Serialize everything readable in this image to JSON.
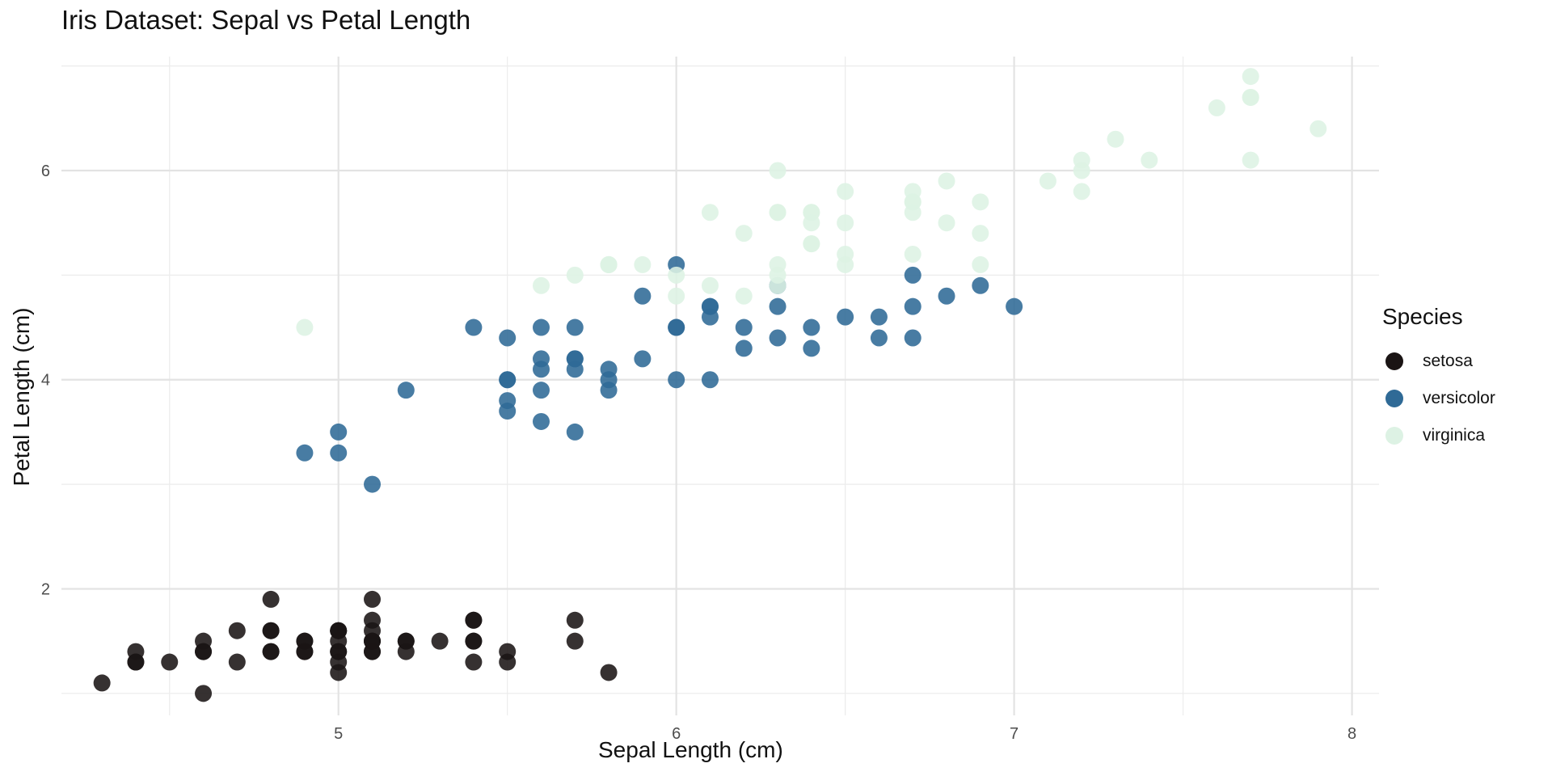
{
  "chart_data": {
    "type": "scatter",
    "title": "Iris Dataset: Sepal vs Petal Length",
    "xlabel": "Sepal Length (cm)",
    "ylabel": "Petal Length (cm)",
    "xlim": [
      4.18,
      8.08
    ],
    "ylim": [
      0.79,
      7.09
    ],
    "x_ticks": [
      5,
      6,
      7,
      8
    ],
    "x_tick_labels": [
      "5",
      "6",
      "7",
      "8"
    ],
    "y_ticks": [
      2,
      4,
      6
    ],
    "y_tick_labels": [
      "2",
      "4",
      "6"
    ],
    "grid": true,
    "legend_title": "Species",
    "legend_position": "right",
    "series": [
      {
        "name": "setosa",
        "color": "#1a1414",
        "points": [
          [
            5.1,
            1.4
          ],
          [
            4.9,
            1.4
          ],
          [
            4.7,
            1.3
          ],
          [
            4.6,
            1.5
          ],
          [
            5.0,
            1.4
          ],
          [
            5.4,
            1.7
          ],
          [
            4.6,
            1.4
          ],
          [
            5.0,
            1.5
          ],
          [
            4.4,
            1.4
          ],
          [
            4.9,
            1.5
          ],
          [
            5.4,
            1.5
          ],
          [
            4.8,
            1.6
          ],
          [
            4.8,
            1.4
          ],
          [
            4.3,
            1.1
          ],
          [
            5.8,
            1.2
          ],
          [
            5.7,
            1.5
          ],
          [
            5.4,
            1.3
          ],
          [
            5.1,
            1.4
          ],
          [
            5.7,
            1.7
          ],
          [
            5.1,
            1.5
          ],
          [
            5.4,
            1.7
          ],
          [
            5.1,
            1.5
          ],
          [
            4.6,
            1.0
          ],
          [
            5.1,
            1.7
          ],
          [
            4.8,
            1.9
          ],
          [
            5.0,
            1.6
          ],
          [
            5.0,
            1.6
          ],
          [
            5.2,
            1.5
          ],
          [
            5.2,
            1.4
          ],
          [
            4.7,
            1.6
          ],
          [
            4.8,
            1.6
          ],
          [
            5.4,
            1.5
          ],
          [
            5.2,
            1.5
          ],
          [
            5.5,
            1.4
          ],
          [
            4.9,
            1.5
          ],
          [
            5.0,
            1.2
          ],
          [
            5.5,
            1.3
          ],
          [
            4.9,
            1.4
          ],
          [
            4.4,
            1.3
          ],
          [
            5.1,
            1.5
          ],
          [
            5.0,
            1.3
          ],
          [
            4.5,
            1.3
          ],
          [
            4.4,
            1.3
          ],
          [
            5.0,
            1.6
          ],
          [
            5.1,
            1.9
          ],
          [
            4.8,
            1.4
          ],
          [
            5.1,
            1.6
          ],
          [
            4.6,
            1.4
          ],
          [
            5.3,
            1.5
          ],
          [
            5.0,
            1.4
          ]
        ]
      },
      {
        "name": "versicolor",
        "color": "#2f6a96",
        "points": [
          [
            7.0,
            4.7
          ],
          [
            6.4,
            4.5
          ],
          [
            6.9,
            4.9
          ],
          [
            5.5,
            4.0
          ],
          [
            6.5,
            4.6
          ],
          [
            5.7,
            4.5
          ],
          [
            6.3,
            4.7
          ],
          [
            4.9,
            3.3
          ],
          [
            6.6,
            4.6
          ],
          [
            5.2,
            3.9
          ],
          [
            5.0,
            3.5
          ],
          [
            5.9,
            4.2
          ],
          [
            6.0,
            4.0
          ],
          [
            6.1,
            4.7
          ],
          [
            5.6,
            3.6
          ],
          [
            6.7,
            4.4
          ],
          [
            5.6,
            4.5
          ],
          [
            5.8,
            4.1
          ],
          [
            6.2,
            4.5
          ],
          [
            5.6,
            3.9
          ],
          [
            5.9,
            4.8
          ],
          [
            6.1,
            4.0
          ],
          [
            6.3,
            4.9
          ],
          [
            6.1,
            4.7
          ],
          [
            6.4,
            4.3
          ],
          [
            6.6,
            4.4
          ],
          [
            6.8,
            4.8
          ],
          [
            6.7,
            5.0
          ],
          [
            6.0,
            4.5
          ],
          [
            5.7,
            3.5
          ],
          [
            5.5,
            3.8
          ],
          [
            5.5,
            3.7
          ],
          [
            5.8,
            3.9
          ],
          [
            6.0,
            5.1
          ],
          [
            5.4,
            4.5
          ],
          [
            6.0,
            4.5
          ],
          [
            6.7,
            4.7
          ],
          [
            6.3,
            4.4
          ],
          [
            5.6,
            4.1
          ],
          [
            5.5,
            4.0
          ],
          [
            5.5,
            4.4
          ],
          [
            6.1,
            4.6
          ],
          [
            5.8,
            4.0
          ],
          [
            5.0,
            3.3
          ],
          [
            5.6,
            4.2
          ],
          [
            5.7,
            4.2
          ],
          [
            5.7,
            4.2
          ],
          [
            6.2,
            4.3
          ],
          [
            5.1,
            3.0
          ],
          [
            5.7,
            4.1
          ]
        ]
      },
      {
        "name": "virginica",
        "color": "#ddf2e4",
        "points": [
          [
            6.3,
            6.0
          ],
          [
            5.8,
            5.1
          ],
          [
            7.1,
            5.9
          ],
          [
            6.3,
            5.6
          ],
          [
            6.5,
            5.8
          ],
          [
            7.6,
            6.6
          ],
          [
            4.9,
            4.5
          ],
          [
            7.3,
            6.3
          ],
          [
            6.7,
            5.8
          ],
          [
            7.2,
            6.1
          ],
          [
            6.5,
            5.1
          ],
          [
            6.4,
            5.3
          ],
          [
            6.8,
            5.5
          ],
          [
            5.7,
            5.0
          ],
          [
            5.8,
            5.1
          ],
          [
            6.4,
            5.3
          ],
          [
            6.5,
            5.5
          ],
          [
            7.7,
            6.7
          ],
          [
            7.7,
            6.9
          ],
          [
            6.0,
            5.0
          ],
          [
            6.9,
            5.7
          ],
          [
            5.6,
            4.9
          ],
          [
            7.7,
            6.7
          ],
          [
            6.3,
            4.9
          ],
          [
            6.7,
            5.7
          ],
          [
            7.2,
            6.0
          ],
          [
            6.2,
            4.8
          ],
          [
            6.1,
            4.9
          ],
          [
            6.4,
            5.6
          ],
          [
            7.2,
            5.8
          ],
          [
            7.4,
            6.1
          ],
          [
            7.9,
            6.4
          ],
          [
            6.4,
            5.6
          ],
          [
            6.3,
            5.1
          ],
          [
            6.1,
            5.6
          ],
          [
            7.7,
            6.1
          ],
          [
            6.3,
            5.6
          ],
          [
            6.4,
            5.5
          ],
          [
            6.0,
            4.8
          ],
          [
            6.9,
            5.4
          ],
          [
            6.7,
            5.6
          ],
          [
            6.9,
            5.1
          ],
          [
            5.8,
            5.1
          ],
          [
            6.8,
            5.9
          ],
          [
            6.7,
            5.7
          ],
          [
            6.7,
            5.2
          ],
          [
            6.3,
            5.0
          ],
          [
            6.5,
            5.2
          ],
          [
            6.2,
            5.4
          ],
          [
            5.9,
            5.1
          ]
        ]
      }
    ]
  }
}
